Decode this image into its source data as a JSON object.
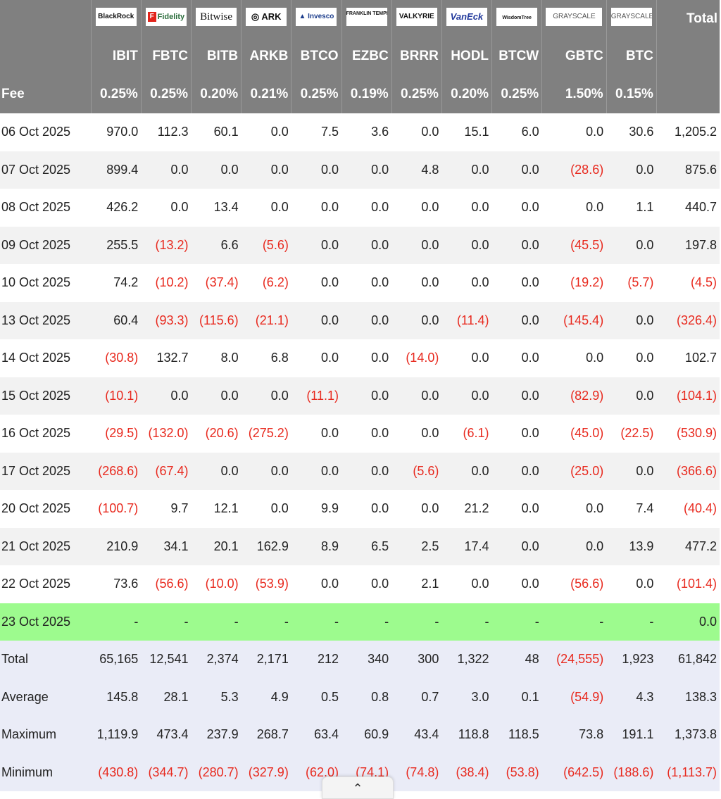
{
  "logos": [
    {
      "name": "blackrock-logo",
      "text": "BlackRock"
    },
    {
      "name": "fidelity-logo",
      "text": "Fidelity"
    },
    {
      "name": "bitwise-logo",
      "text": "Bitwise"
    },
    {
      "name": "ark-logo",
      "text": "ARK"
    },
    {
      "name": "invesco-logo",
      "text": "Invesco"
    },
    {
      "name": "franklin-templeton-logo",
      "text": "FRANKLIN TEMPLETON"
    },
    {
      "name": "valkyrie-logo",
      "text": "VALKYRIE"
    },
    {
      "name": "vaneck-logo",
      "text": "VanEck"
    },
    {
      "name": "wisdomtree-logo",
      "text": "WisdomTree"
    },
    {
      "name": "grayscale-gbtc-logo",
      "text": "GRAYSCALE"
    },
    {
      "name": "grayscale-btc-logo",
      "text": "GRAYSCALE"
    }
  ],
  "header": {
    "total_label": "Total",
    "fee_label": "Fee",
    "tickers": [
      "IBIT",
      "FBTC",
      "BITB",
      "ARKB",
      "BTCO",
      "EZBC",
      "BRRR",
      "HODL",
      "BTCW",
      "GBTC",
      "BTC"
    ],
    "fees": [
      "0.25%",
      "0.25%",
      "0.20%",
      "0.21%",
      "0.25%",
      "0.19%",
      "0.25%",
      "0.20%",
      "0.25%",
      "1.50%",
      "0.15%"
    ]
  },
  "rows": [
    {
      "date": "06 Oct 2025",
      "values": [
        "970.0",
        "112.3",
        "60.1",
        "0.0",
        "7.5",
        "3.6",
        "0.0",
        "15.1",
        "6.0",
        "0.0",
        "30.6",
        "1,205.2"
      ]
    },
    {
      "date": "07 Oct 2025",
      "values": [
        "899.4",
        "0.0",
        "0.0",
        "0.0",
        "0.0",
        "0.0",
        "4.8",
        "0.0",
        "0.0",
        "(28.6)",
        "0.0",
        "875.6"
      ]
    },
    {
      "date": "08 Oct 2025",
      "values": [
        "426.2",
        "0.0",
        "13.4",
        "0.0",
        "0.0",
        "0.0",
        "0.0",
        "0.0",
        "0.0",
        "0.0",
        "1.1",
        "440.7"
      ]
    },
    {
      "date": "09 Oct 2025",
      "values": [
        "255.5",
        "(13.2)",
        "6.6",
        "(5.6)",
        "0.0",
        "0.0",
        "0.0",
        "0.0",
        "0.0",
        "(45.5)",
        "0.0",
        "197.8"
      ]
    },
    {
      "date": "10 Oct 2025",
      "values": [
        "74.2",
        "(10.2)",
        "(37.4)",
        "(6.2)",
        "0.0",
        "0.0",
        "0.0",
        "0.0",
        "0.0",
        "(19.2)",
        "(5.7)",
        "(4.5)"
      ]
    },
    {
      "date": "13 Oct 2025",
      "values": [
        "60.4",
        "(93.3)",
        "(115.6)",
        "(21.1)",
        "0.0",
        "0.0",
        "0.0",
        "(11.4)",
        "0.0",
        "(145.4)",
        "0.0",
        "(326.4)"
      ]
    },
    {
      "date": "14 Oct 2025",
      "values": [
        "(30.8)",
        "132.7",
        "8.0",
        "6.8",
        "0.0",
        "0.0",
        "(14.0)",
        "0.0",
        "0.0",
        "0.0",
        "0.0",
        "102.7"
      ]
    },
    {
      "date": "15 Oct 2025",
      "values": [
        "(10.1)",
        "0.0",
        "0.0",
        "0.0",
        "(11.1)",
        "0.0",
        "0.0",
        "0.0",
        "0.0",
        "(82.9)",
        "0.0",
        "(104.1)"
      ]
    },
    {
      "date": "16 Oct 2025",
      "values": [
        "(29.5)",
        "(132.0)",
        "(20.6)",
        "(275.2)",
        "0.0",
        "0.0",
        "0.0",
        "(6.1)",
        "0.0",
        "(45.0)",
        "(22.5)",
        "(530.9)"
      ]
    },
    {
      "date": "17 Oct 2025",
      "values": [
        "(268.6)",
        "(67.4)",
        "0.0",
        "0.0",
        "0.0",
        "0.0",
        "(5.6)",
        "0.0",
        "0.0",
        "(25.0)",
        "0.0",
        "(366.6)"
      ]
    },
    {
      "date": "20 Oct 2025",
      "values": [
        "(100.7)",
        "9.7",
        "12.1",
        "0.0",
        "9.9",
        "0.0",
        "0.0",
        "21.2",
        "0.0",
        "0.0",
        "7.4",
        "(40.4)"
      ]
    },
    {
      "date": "21 Oct 2025",
      "values": [
        "210.9",
        "34.1",
        "20.1",
        "162.9",
        "8.9",
        "6.5",
        "2.5",
        "17.4",
        "0.0",
        "0.0",
        "13.9",
        "477.2"
      ]
    },
    {
      "date": "22 Oct 2025",
      "values": [
        "73.6",
        "(56.6)",
        "(10.0)",
        "(53.9)",
        "0.0",
        "0.0",
        "2.1",
        "0.0",
        "0.0",
        "(56.6)",
        "0.0",
        "(101.4)"
      ]
    },
    {
      "date": "23 Oct 2025",
      "values": [
        "-",
        "-",
        "-",
        "-",
        "-",
        "-",
        "-",
        "-",
        "-",
        "-",
        "-",
        "0.0"
      ],
      "today": true
    }
  ],
  "summary": [
    {
      "label": "Total",
      "values": [
        "65,165",
        "12,541",
        "2,374",
        "2,171",
        "212",
        "340",
        "300",
        "1,322",
        "48",
        "(24,555)",
        "1,923",
        "61,842"
      ]
    },
    {
      "label": "Average",
      "values": [
        "145.8",
        "28.1",
        "5.3",
        "4.9",
        "0.5",
        "0.8",
        "0.7",
        "3.0",
        "0.1",
        "(54.9)",
        "4.3",
        "138.3"
      ]
    },
    {
      "label": "Maximum",
      "values": [
        "1,119.9",
        "473.4",
        "237.9",
        "268.7",
        "63.4",
        "60.9",
        "43.4",
        "118.8",
        "118.5",
        "73.8",
        "191.1",
        "1,373.8"
      ]
    },
    {
      "label": "Minimum",
      "values": [
        "(430.8)",
        "(344.7)",
        "(280.7)",
        "(327.9)",
        "(62.0)",
        "(74.1)",
        "(74.8)",
        "(38.4)",
        "(53.8)",
        "(642.5)",
        "(188.6)",
        "(1,113.7)"
      ]
    }
  ],
  "scroll_up_icon": "chevron-up-icon",
  "colors": {
    "header_bg": "#808080",
    "negative": "#e8291e",
    "today_bg": "#9dfb8e",
    "summary_bg": "#eaecf7"
  }
}
